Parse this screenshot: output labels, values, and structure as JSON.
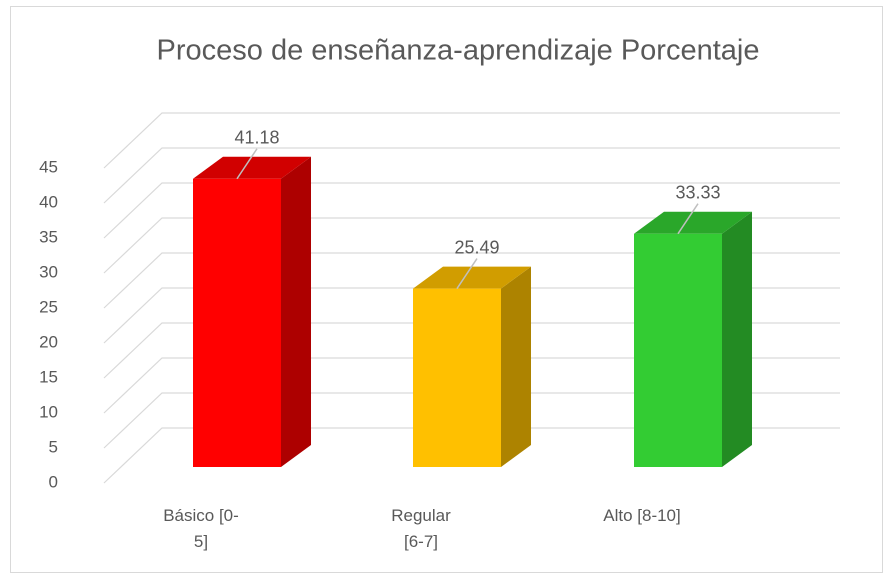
{
  "chart_data": {
    "type": "bar3d",
    "title": "Proceso de enseñanza-aprendizaje Porcentaje",
    "categories": [
      "Básico [0-5]",
      "Regular [6-7]",
      "Alto [8-10]"
    ],
    "values": [
      41.18,
      25.49,
      33.33
    ],
    "colors": [
      "#ff0000",
      "#ffc000",
      "#33cc33"
    ],
    "ylim": [
      0,
      45
    ],
    "yticks": [
      0,
      5,
      10,
      15,
      20,
      25,
      30,
      35,
      40,
      45
    ],
    "grid": true
  }
}
